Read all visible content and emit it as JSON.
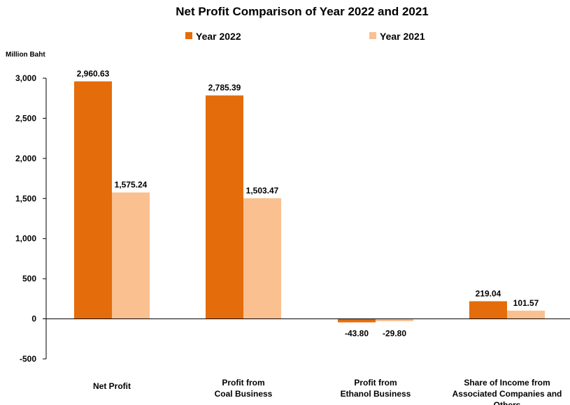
{
  "chart_data": {
    "type": "bar",
    "title": "Net Profit Comparison of Year 2022 and 2021",
    "ylabel": "Million Baht",
    "ylim": [
      -500,
      3000
    ],
    "yticks": [
      "-500",
      "0",
      "500",
      "1,000",
      "1,500",
      "2,000",
      "2,500",
      "3,000"
    ],
    "ytick_values": [
      -500,
      0,
      500,
      1000,
      1500,
      2000,
      2500,
      3000
    ],
    "grid": false,
    "legend_position": "top",
    "categories": [
      [
        "Net Profit"
      ],
      [
        "Profit from",
        "Coal Business"
      ],
      [
        "Profit from",
        "Ethanol Business"
      ],
      [
        "Share of Income from",
        "Associated Companies and",
        "Others"
      ]
    ],
    "series": [
      {
        "name": "Year 2022",
        "color": "#E46C0A",
        "values": [
          2960.63,
          2785.39,
          -43.8,
          219.04
        ],
        "labels": [
          "2,960.63",
          "2,785.39",
          "-43.80",
          "219.04"
        ]
      },
      {
        "name": "Year 2021",
        "color": "#FAC090",
        "values": [
          1575.24,
          1503.47,
          -29.8,
          101.57
        ],
        "labels": [
          "1,575.24",
          "1,503.47",
          "-29.80",
          "101.57"
        ]
      }
    ]
  }
}
